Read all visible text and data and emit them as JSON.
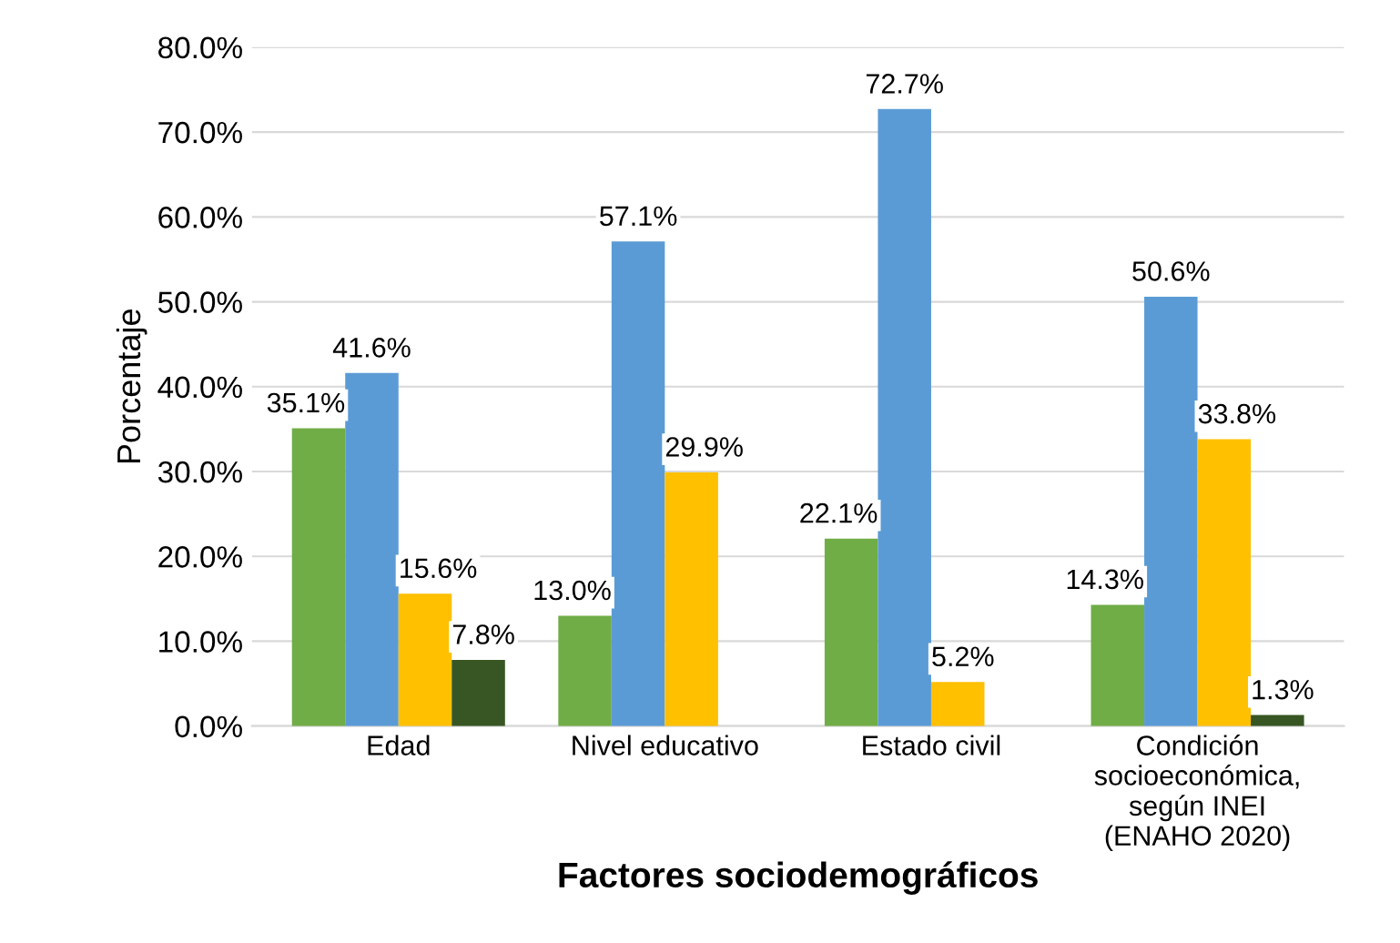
{
  "chart_data": {
    "type": "bar",
    "xlabel": "Factores sociodemográficos",
    "ylabel": "Porcentaje",
    "categories": [
      "Edad",
      "Nivel educativo",
      "Estado civil",
      "Condición\nsocioeconómica,\nsegún INEI\n(ENAHO 2020)"
    ],
    "series": [
      {
        "color": "#70ad47",
        "values": [
          35.1,
          13.0,
          22.1,
          14.3
        ],
        "value_labels": [
          "35.1%",
          "13.0%",
          "22.1%",
          "14.3%"
        ]
      },
      {
        "color": "#5b9bd5",
        "values": [
          41.6,
          57.1,
          72.7,
          50.6
        ],
        "value_labels": [
          "41.6%",
          "57.1%",
          "72.7%",
          "50.6%"
        ]
      },
      {
        "color": "#ffc000",
        "values": [
          15.6,
          29.9,
          5.2,
          33.8
        ],
        "value_labels": [
          "15.6%",
          "29.9%",
          "5.2%",
          "33.8%"
        ]
      },
      {
        "color": "#375623",
        "values": [
          7.8,
          null,
          null,
          1.3
        ],
        "value_labels": [
          "7.8%",
          null,
          null,
          "1.3%"
        ]
      }
    ],
    "ylim": [
      0,
      80
    ],
    "yticks": [
      {
        "value": 0,
        "label": "0.0%"
      },
      {
        "value": 10,
        "label": "10.0%"
      },
      {
        "value": 20,
        "label": "20.0%"
      },
      {
        "value": 30,
        "label": "30.0%"
      },
      {
        "value": 40,
        "label": "40.0%"
      },
      {
        "value": 50,
        "label": "50.0%"
      },
      {
        "value": 60,
        "label": "60.0%"
      },
      {
        "value": 70,
        "label": "70.0%"
      },
      {
        "value": 80,
        "label": "80.0%"
      }
    ],
    "grid": "y",
    "legend": false
  }
}
